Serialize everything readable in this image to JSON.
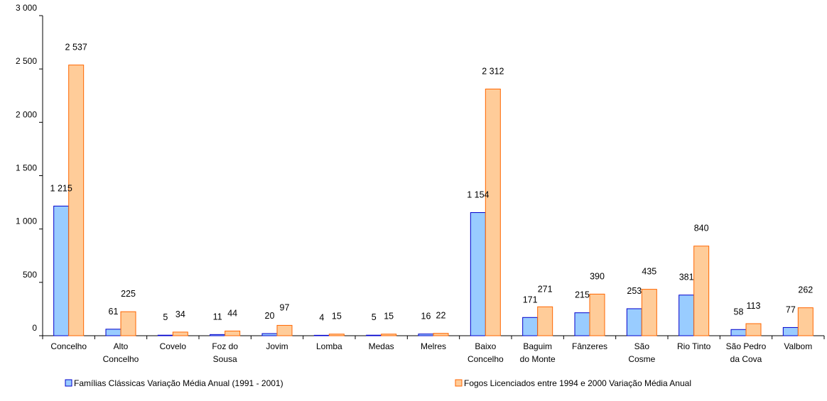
{
  "chart_data": {
    "type": "bar",
    "categories": [
      "Concelho",
      "Alto Concelho",
      "Covelo",
      "Foz do Sousa",
      "Jovim",
      "Lomba",
      "Medas",
      "Melres",
      "Baixo Concelho",
      "Baguim do Monte",
      "Fânzeres",
      "São Cosme",
      "Rio Tinto",
      "São Pedro da Cova",
      "Valbom"
    ],
    "category_lines": [
      [
        "Concelho"
      ],
      [
        "Alto",
        "Concelho"
      ],
      [
        "Covelo"
      ],
      [
        "Foz do",
        "Sousa"
      ],
      [
        "Jovim"
      ],
      [
        "Lomba"
      ],
      [
        "Medas"
      ],
      [
        "Melres"
      ],
      [
        "Baixo",
        "Concelho"
      ],
      [
        "Baguim",
        "do Monte"
      ],
      [
        "Fânzeres"
      ],
      [
        "São",
        "Cosme"
      ],
      [
        "Rio Tinto"
      ],
      [
        "São Pedro",
        "da Cova"
      ],
      [
        "Valbom"
      ]
    ],
    "series": [
      {
        "name": "Famílias Clássicas Variação Média Anual (1991 - 2001)",
        "values": [
          1215,
          61,
          5,
          11,
          20,
          4,
          5,
          16,
          1154,
          171,
          215,
          253,
          381,
          58,
          77
        ],
        "labels": [
          "1 215",
          "61",
          "5",
          "11",
          "20",
          "4",
          "5",
          "16",
          "1 154",
          "171",
          "215",
          "253",
          "381",
          "58",
          "77"
        ],
        "color": "#99ccff",
        "border": "#0000cc"
      },
      {
        "name": "Fogos Licenciados entre 1994 e 2000 Variação Média Anual",
        "values": [
          2537,
          225,
          34,
          44,
          97,
          15,
          15,
          22,
          2312,
          271,
          390,
          435,
          840,
          113,
          262
        ],
        "labels": [
          "2 537",
          "225",
          "34",
          "44",
          "97",
          "15",
          "15",
          "22",
          "2 312",
          "271",
          "390",
          "435",
          "840",
          "113",
          "262"
        ],
        "color": "#ffcc99",
        "border": "#ff6600"
      }
    ],
    "y_ticks": [
      0,
      500,
      1000,
      1500,
      2000,
      2500,
      3000
    ],
    "y_tick_labels": [
      "0",
      "500",
      "1 000",
      "1 500",
      "2 000",
      "2 500",
      "3 000"
    ],
    "ylim": [
      0,
      3000
    ],
    "legend_position": "bottom",
    "grid": false
  }
}
